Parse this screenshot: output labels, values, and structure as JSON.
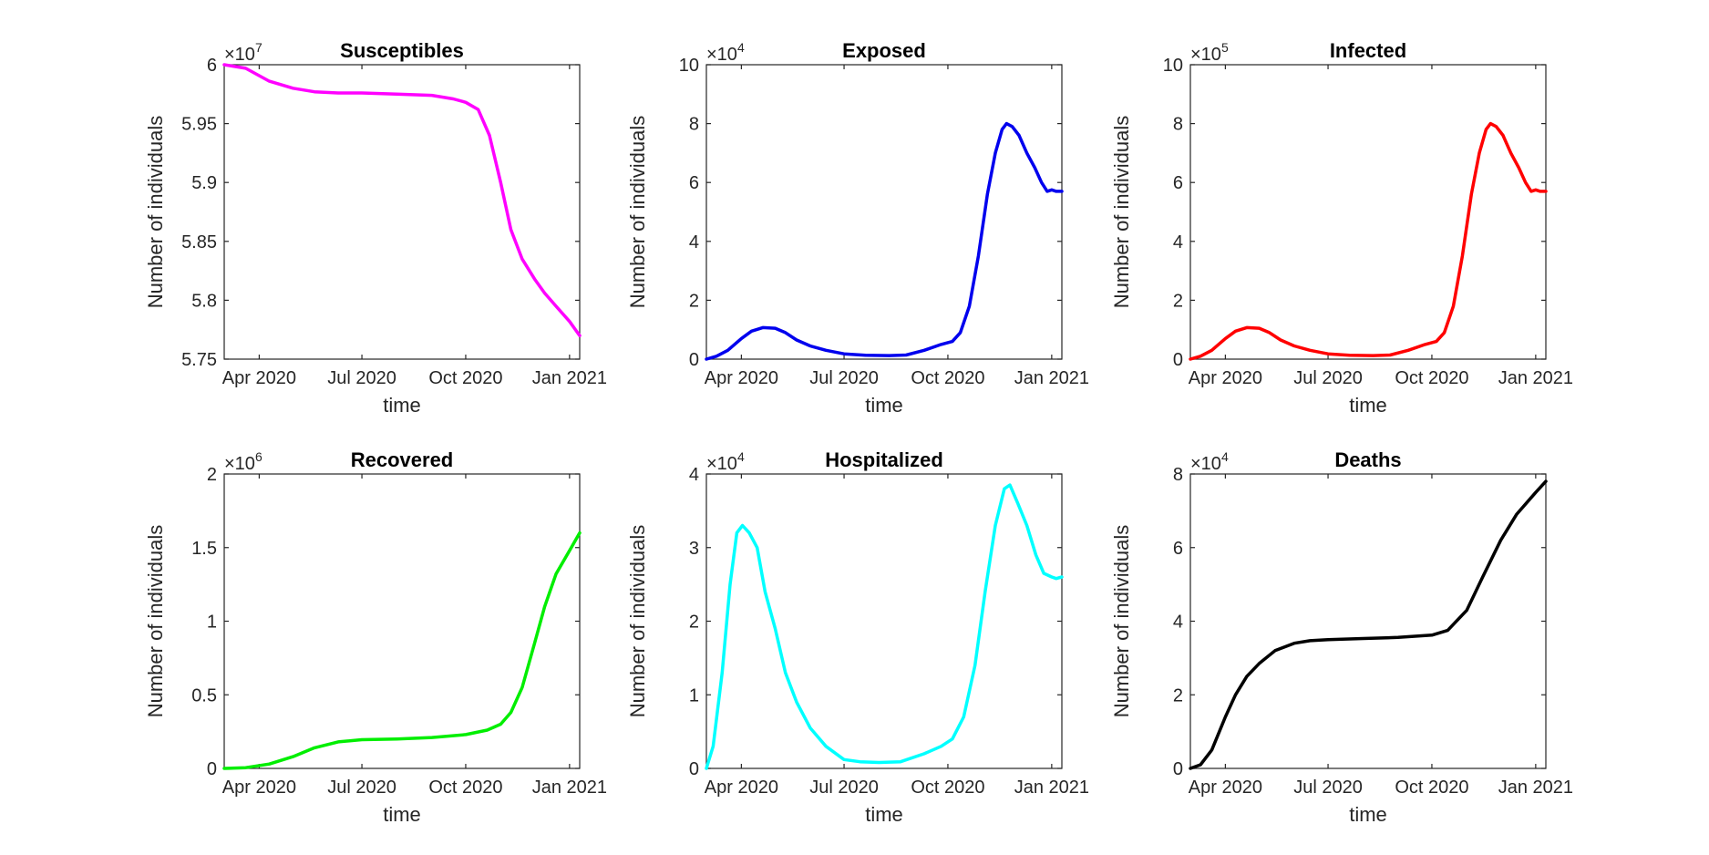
{
  "chart_data": [
    {
      "type": "line",
      "title": "Susceptibles",
      "xlabel": "time",
      "ylabel": "Number of individuals",
      "color": "#ff00ff",
      "exponent_base": "×10",
      "exponent_power": "7",
      "ylim": [
        5.75,
        6
      ],
      "yticks": [
        5.75,
        5.8,
        5.85,
        5.9,
        5.95,
        6
      ],
      "ytick_labels": [
        "5.75",
        "5.8",
        "5.85",
        "5.9",
        "5.95",
        "6"
      ],
      "xtick_labels": [
        "Apr 2020",
        "Jul 2020",
        "Oct 2020",
        "Jan 2021"
      ],
      "series": [
        {
          "x": [
            "2020-03-01",
            "2020-03-20",
            "2020-04-10",
            "2020-05-01",
            "2020-05-20",
            "2020-06-10",
            "2020-07-01",
            "2020-08-01",
            "2020-09-01",
            "2020-09-20",
            "2020-10-01",
            "2020-10-12",
            "2020-10-22",
            "2020-11-01",
            "2020-11-10",
            "2020-11-20",
            "2020-12-01",
            "2020-12-10",
            "2020-12-20",
            "2021-01-01",
            "2021-01-10"
          ],
          "y": [
            6.0,
            5.997,
            5.986,
            5.98,
            5.977,
            5.976,
            5.976,
            5.975,
            5.974,
            5.971,
            5.968,
            5.962,
            5.94,
            5.9,
            5.86,
            5.835,
            5.818,
            5.806,
            5.795,
            5.782,
            5.77
          ]
        }
      ]
    },
    {
      "type": "line",
      "title": "Exposed",
      "xlabel": "time",
      "ylabel": "Number of individuals",
      "color": "#0000ee",
      "exponent_base": "×10",
      "exponent_power": "4",
      "ylim": [
        0,
        10
      ],
      "yticks": [
        0,
        2,
        4,
        6,
        8,
        10
      ],
      "ytick_labels": [
        "0",
        "2",
        "4",
        "6",
        "8",
        "10"
      ],
      "xtick_labels": [
        "Apr 2020",
        "Jul 2020",
        "Oct 2020",
        "Jan 2021"
      ],
      "series": [
        {
          "x": [
            "2020-03-01",
            "2020-03-10",
            "2020-03-20",
            "2020-04-01",
            "2020-04-10",
            "2020-04-20",
            "2020-05-01",
            "2020-05-10",
            "2020-05-20",
            "2020-06-01",
            "2020-06-15",
            "2020-07-01",
            "2020-07-20",
            "2020-08-10",
            "2020-08-25",
            "2020-09-10",
            "2020-09-25",
            "2020-10-05",
            "2020-10-12",
            "2020-10-20",
            "2020-10-28",
            "2020-11-05",
            "2020-11-12",
            "2020-11-18",
            "2020-11-22",
            "2020-11-27",
            "2020-12-03",
            "2020-12-10",
            "2020-12-17",
            "2020-12-23",
            "2020-12-28",
            "2021-01-01",
            "2021-01-05",
            "2021-01-10"
          ],
          "y": [
            0.0,
            0.1,
            0.3,
            0.7,
            0.95,
            1.07,
            1.05,
            0.9,
            0.65,
            0.45,
            0.3,
            0.18,
            0.13,
            0.12,
            0.14,
            0.3,
            0.5,
            0.6,
            0.9,
            1.8,
            3.5,
            5.6,
            7.0,
            7.8,
            8.0,
            7.9,
            7.6,
            7.0,
            6.5,
            6.0,
            5.7,
            5.75,
            5.7,
            5.7
          ]
        }
      ]
    },
    {
      "type": "line",
      "title": "Infected",
      "xlabel": "time",
      "ylabel": "Number of individuals",
      "color": "#ff0000",
      "exponent_base": "×10",
      "exponent_power": "5",
      "ylim": [
        0,
        10
      ],
      "yticks": [
        0,
        2,
        4,
        6,
        8,
        10
      ],
      "ytick_labels": [
        "0",
        "2",
        "4",
        "6",
        "8",
        "10"
      ],
      "xtick_labels": [
        "Apr 2020",
        "Jul 2020",
        "Oct 2020",
        "Jan 2021"
      ],
      "series": [
        {
          "x": [
            "2020-03-01",
            "2020-03-10",
            "2020-03-20",
            "2020-04-01",
            "2020-04-10",
            "2020-04-20",
            "2020-05-01",
            "2020-05-10",
            "2020-05-20",
            "2020-06-01",
            "2020-06-15",
            "2020-07-01",
            "2020-07-20",
            "2020-08-10",
            "2020-08-25",
            "2020-09-10",
            "2020-09-25",
            "2020-10-05",
            "2020-10-12",
            "2020-10-20",
            "2020-10-28",
            "2020-11-05",
            "2020-11-12",
            "2020-11-18",
            "2020-11-22",
            "2020-11-27",
            "2020-12-03",
            "2020-12-10",
            "2020-12-17",
            "2020-12-23",
            "2020-12-28",
            "2021-01-01",
            "2021-01-05",
            "2021-01-10"
          ],
          "y": [
            0.0,
            0.1,
            0.3,
            0.7,
            0.95,
            1.07,
            1.05,
            0.9,
            0.65,
            0.45,
            0.3,
            0.18,
            0.13,
            0.12,
            0.14,
            0.3,
            0.5,
            0.6,
            0.9,
            1.8,
            3.5,
            5.6,
            7.0,
            7.8,
            8.0,
            7.9,
            7.6,
            7.0,
            6.5,
            6.0,
            5.7,
            5.75,
            5.7,
            5.7
          ]
        }
      ]
    },
    {
      "type": "line",
      "title": "Recovered",
      "xlabel": "time",
      "ylabel": "Number of individuals",
      "color": "#00ee00",
      "exponent_base": "×10",
      "exponent_power": "6",
      "ylim": [
        0,
        2
      ],
      "yticks": [
        0,
        0.5,
        1,
        1.5,
        2
      ],
      "ytick_labels": [
        "0",
        "0.5",
        "1",
        "1.5",
        "2"
      ],
      "xtick_labels": [
        "Apr 2020",
        "Jul 2020",
        "Oct 2020",
        "Jan 2021"
      ],
      "series": [
        {
          "x": [
            "2020-03-01",
            "2020-03-20",
            "2020-04-10",
            "2020-05-01",
            "2020-05-20",
            "2020-06-10",
            "2020-07-01",
            "2020-08-01",
            "2020-09-01",
            "2020-10-01",
            "2020-10-20",
            "2020-11-01",
            "2020-11-10",
            "2020-11-20",
            "2020-12-01",
            "2020-12-10",
            "2020-12-20",
            "2021-01-01",
            "2021-01-10"
          ],
          "y": [
            0.0,
            0.005,
            0.03,
            0.08,
            0.14,
            0.18,
            0.195,
            0.2,
            0.21,
            0.23,
            0.26,
            0.3,
            0.38,
            0.55,
            0.85,
            1.1,
            1.32,
            1.48,
            1.6
          ]
        }
      ]
    },
    {
      "type": "line",
      "title": "Hospitalized",
      "xlabel": "time",
      "ylabel": "Number of individuals",
      "color": "#00ffff",
      "exponent_base": "×10",
      "exponent_power": "4",
      "ylim": [
        0,
        4
      ],
      "yticks": [
        0,
        1,
        2,
        3,
        4
      ],
      "ytick_labels": [
        "0",
        "1",
        "2",
        "3",
        "4"
      ],
      "xtick_labels": [
        "Apr 2020",
        "Jul 2020",
        "Oct 2020",
        "Jan 2021"
      ],
      "series": [
        {
          "x": [
            "2020-03-01",
            "2020-03-07",
            "2020-03-15",
            "2020-03-22",
            "2020-03-28",
            "2020-04-02",
            "2020-04-08",
            "2020-04-15",
            "2020-04-22",
            "2020-05-01",
            "2020-05-10",
            "2020-05-20",
            "2020-06-01",
            "2020-06-15",
            "2020-07-01",
            "2020-07-15",
            "2020-08-01",
            "2020-08-20",
            "2020-09-10",
            "2020-09-25",
            "2020-10-05",
            "2020-10-15",
            "2020-10-25",
            "2020-11-03",
            "2020-11-12",
            "2020-11-20",
            "2020-11-25",
            "2020-12-02",
            "2020-12-10",
            "2020-12-18",
            "2020-12-25",
            "2021-01-01",
            "2021-01-05",
            "2021-01-10"
          ],
          "y": [
            0.0,
            0.3,
            1.3,
            2.5,
            3.2,
            3.3,
            3.2,
            3.0,
            2.4,
            1.9,
            1.3,
            0.9,
            0.55,
            0.3,
            0.12,
            0.09,
            0.08,
            0.09,
            0.2,
            0.3,
            0.4,
            0.7,
            1.4,
            2.4,
            3.3,
            3.8,
            3.85,
            3.6,
            3.3,
            2.9,
            2.65,
            2.6,
            2.58,
            2.6
          ]
        }
      ]
    },
    {
      "type": "line",
      "title": "Deaths",
      "xlabel": "time",
      "ylabel": "Number of individuals",
      "color": "#000000",
      "exponent_base": "×10",
      "exponent_power": "4",
      "ylim": [
        0,
        8
      ],
      "yticks": [
        0,
        2,
        4,
        6,
        8
      ],
      "ytick_labels": [
        "0",
        "2",
        "4",
        "6",
        "8"
      ],
      "xtick_labels": [
        "Apr 2020",
        "Jul 2020",
        "Oct 2020",
        "Jan 2021"
      ],
      "series": [
        {
          "x": [
            "2020-03-01",
            "2020-03-10",
            "2020-03-20",
            "2020-04-01",
            "2020-04-10",
            "2020-04-20",
            "2020-05-01",
            "2020-05-15",
            "2020-06-01",
            "2020-06-15",
            "2020-07-01",
            "2020-08-01",
            "2020-09-01",
            "2020-10-01",
            "2020-10-15",
            "2020-11-01",
            "2020-11-15",
            "2020-12-01",
            "2020-12-15",
            "2021-01-01",
            "2021-01-10"
          ],
          "y": [
            0.0,
            0.1,
            0.5,
            1.4,
            2.0,
            2.5,
            2.85,
            3.2,
            3.4,
            3.47,
            3.5,
            3.53,
            3.56,
            3.62,
            3.75,
            4.3,
            5.2,
            6.2,
            6.9,
            7.5,
            7.8
          ]
        }
      ]
    }
  ]
}
